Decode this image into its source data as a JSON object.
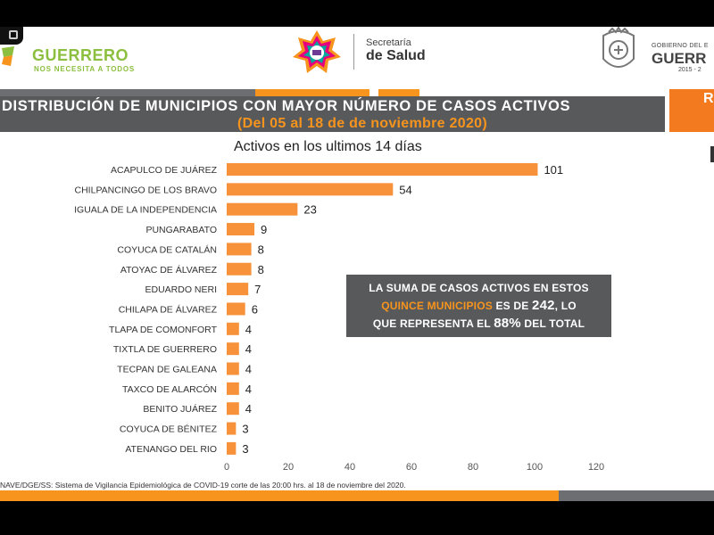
{
  "header": {
    "left_logo_title": "GUERRERO",
    "left_logo_subtitle": "NOS NECESITA A TODOS",
    "mid_logo_line1": "Secretaría",
    "mid_logo_line2": "de Salud",
    "right_logo_line1": "GOBIERNO DEL E",
    "right_logo_line2": "GUERR",
    "right_logo_line3": "2015 - 2",
    "right_tab_letter": "R"
  },
  "title": "DISTRIBUCIÓN DE MUNICIPIOS CON MAYOR NÚMERO DE  CASOS ACTIVOS",
  "subtitle": "(Del 05 al 18 de de noviembre 2020)",
  "info_box": {
    "line1": "LA SUMA DE CASOS ACTIVOS EN ESTOS",
    "line2_highlight": "QUINCE MUNICIPIOS",
    "line2_rest": " ES DE ",
    "line2_value": "242",
    "line2_tail": ", LO",
    "line3_pre": "QUE REPRESENTA EL ",
    "line3_value": "88%",
    "line3_tail": " DEL TOTAL"
  },
  "source": "NAVE/DGE/SS: Sistema de Vigilancia Epidemiológica de COVID-19 corte de las 20:00 hrs. al 18 de noviembre del 2020.",
  "colors": {
    "bar": "#f7923a",
    "accent_orange": "#f7941d",
    "banner_gray": "#58595b"
  },
  "chart_data": {
    "type": "bar",
    "orientation": "horizontal",
    "title": "Activos en los ultimos 14 días",
    "categories": [
      "ACAPULCO DE JUÁREZ",
      "CHILPANCINGO DE LOS BRAVO",
      "IGUALA DE LA INDEPENDENCIA",
      "PUNGARABATO",
      "COYUCA DE CATALÁN",
      "ATOYAC DE ÁLVAREZ",
      "EDUARDO NERI",
      "CHILAPA DE ÁLVAREZ",
      "TLAPA DE COMONFORT",
      "TIXTLA DE GUERRERO",
      "TECPAN DE GALEANA",
      "TAXCO DE ALARCÓN",
      "BENITO JUÁREZ",
      "COYUCA DE BÉNITEZ",
      "ATENANGO DEL RIO"
    ],
    "values": [
      101,
      54,
      23,
      9,
      8,
      8,
      7,
      6,
      4,
      4,
      4,
      4,
      4,
      3,
      3
    ],
    "xlim": [
      0,
      120
    ],
    "xticks": [
      0,
      20,
      40,
      60,
      80,
      100,
      120
    ],
    "grid": false,
    "data_labels": true
  }
}
